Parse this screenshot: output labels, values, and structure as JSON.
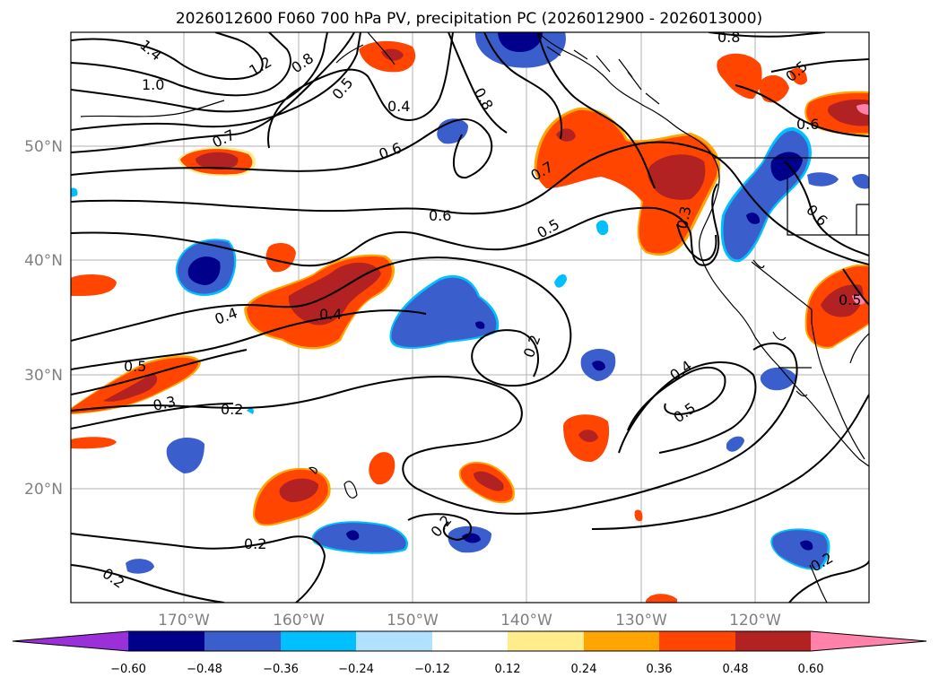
{
  "title": "2026012600 F060 700 hPa PV, precipitation PC (2026012900 - 2026013000)",
  "latitude_labels": [
    "50°N",
    "40°N",
    "30°N",
    "20°N"
  ],
  "longitude_labels": [
    "170°W",
    "160°W",
    "150°W",
    "140°W",
    "130°W",
    "120°W"
  ],
  "colorbar": {
    "colors": [
      "#9b30d9",
      "#00008b",
      "#3a5fcd",
      "#00bfff",
      "#b0e2ff",
      "#ffffff",
      "#ffec8b",
      "#ffa500",
      "#ff4500",
      "#b22222",
      "#ff82ab"
    ],
    "tick_labels": [
      "−0.60",
      "−0.48",
      "−0.36",
      "−0.24",
      "−0.12",
      "0.12",
      "0.24",
      "0.36",
      "0.48",
      "0.60"
    ]
  },
  "contour_labels": [
    "1.4",
    "1.2",
    "1.0",
    "0.8",
    "0.7",
    "0.6",
    "0.5",
    "0.4",
    "0.6",
    "0.4",
    "0.7",
    "0.8",
    "0.8",
    "0.5",
    "0.6",
    "0.6",
    "0.5",
    "0.3",
    "0.4",
    "0.5",
    "0.5",
    "0.3",
    "0.2",
    "0.2",
    "0.2",
    "0.4",
    "0.5",
    "0.2",
    "0.2",
    "0.2",
    "0.5",
    "0.6",
    "0.5",
    "0.7"
  ]
}
